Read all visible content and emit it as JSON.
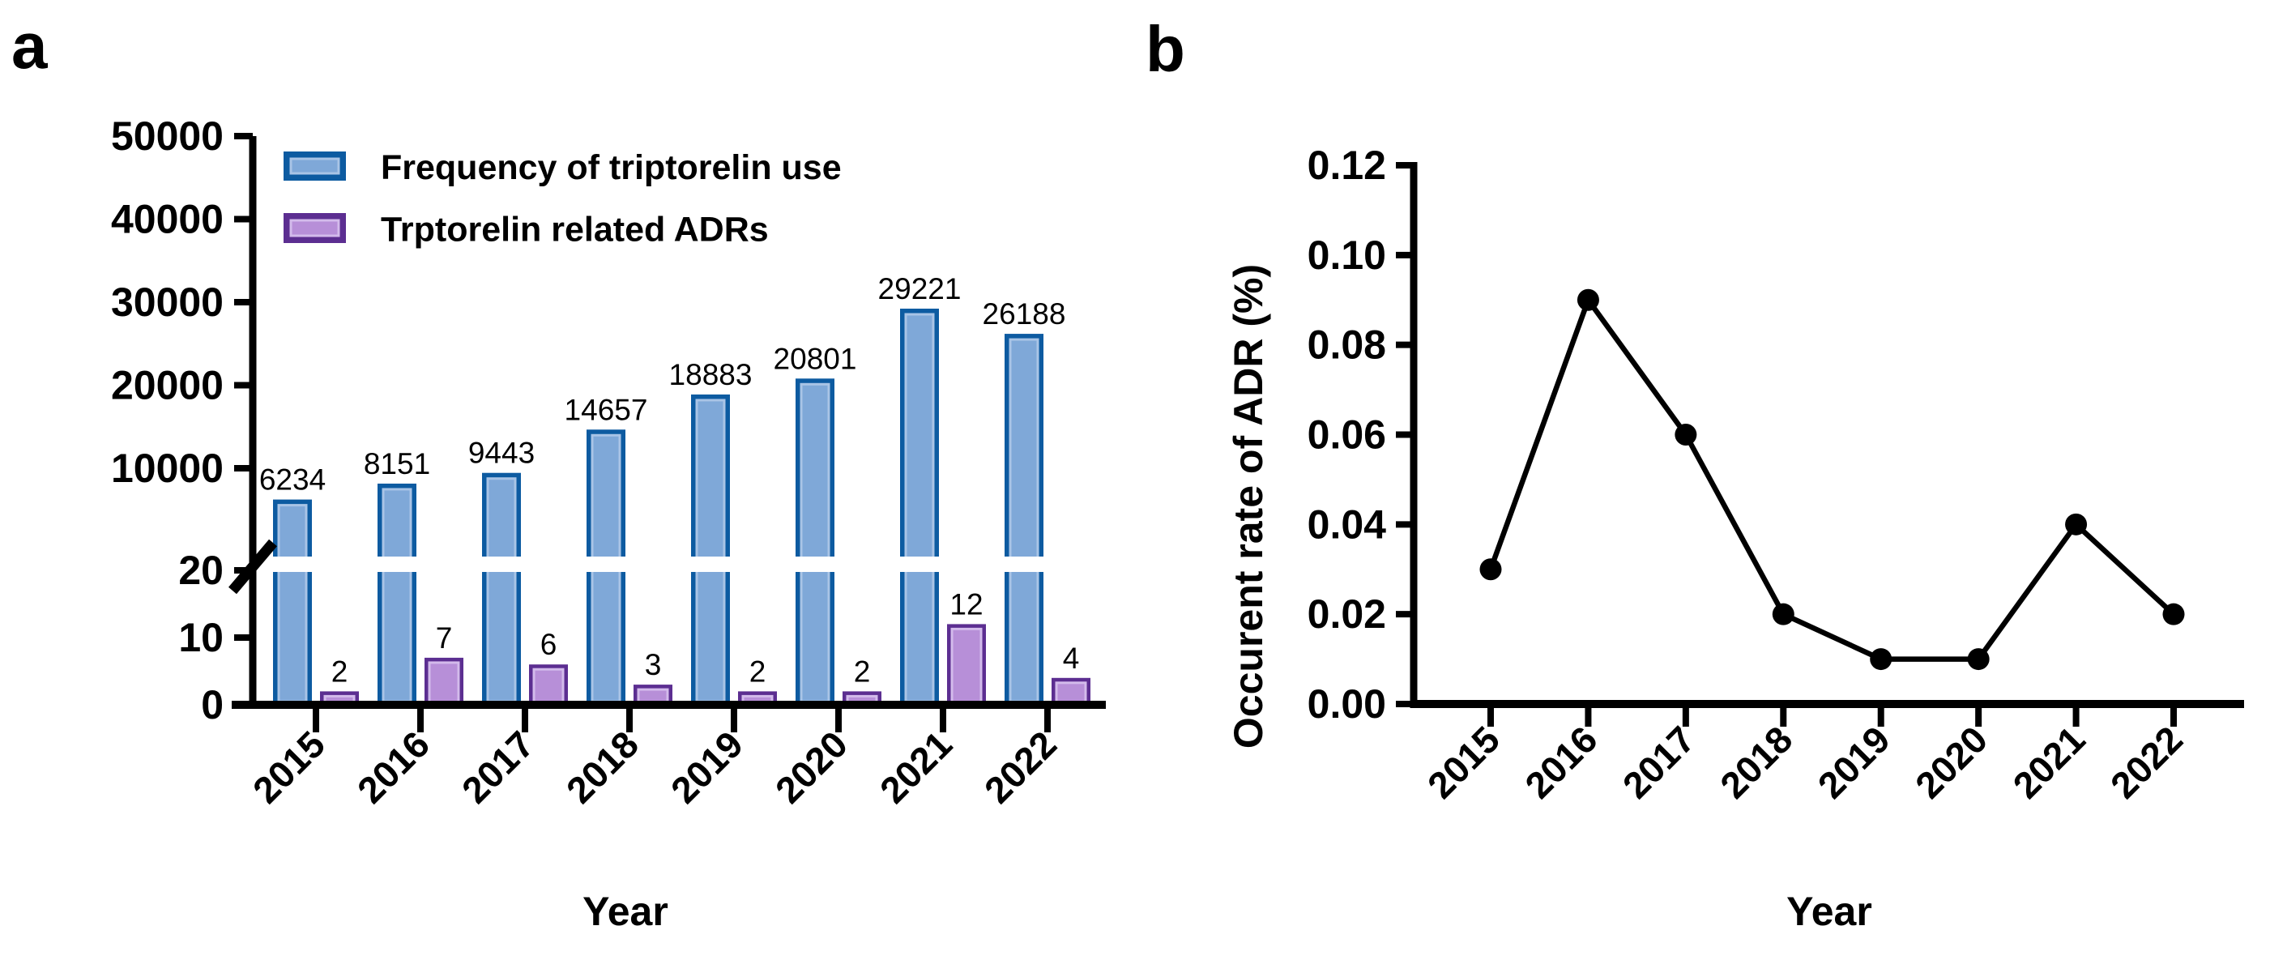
{
  "chart_data": [
    {
      "panel_letter": "a",
      "type": "bar",
      "categories": [
        "2015",
        "2016",
        "2017",
        "2018",
        "2019",
        "2020",
        "2021",
        "2022"
      ],
      "series": [
        {
          "name": "Frequency of triptorelin use",
          "values": [
            6234,
            8151,
            9443,
            14657,
            18883,
            20801,
            29221,
            26188
          ],
          "fill_color": "#7FA8D8",
          "border_color": "#0D5BA1",
          "highlight_color": "#A9C4E6"
        },
        {
          "name": "Trptorelin related ADRs",
          "values": [
            2,
            7,
            6,
            3,
            2,
            2,
            12,
            4
          ],
          "fill_color": "#B78FD8",
          "border_color": "#5C2E91",
          "highlight_color": "#D3BBEB"
        }
      ],
      "xlabel": "Year",
      "ylabel": "",
      "y_axis": {
        "broken": true,
        "lower_tick_labels": [
          "0",
          "10",
          "20"
        ],
        "lower_tick_values": [
          0,
          10,
          20
        ],
        "lower_range": [
          0,
          20
        ],
        "upper_tick_labels": [
          "10000",
          "20000",
          "30000",
          "40000",
          "50000"
        ],
        "upper_tick_values": [
          10000,
          20000,
          30000,
          40000,
          50000
        ],
        "upper_range": [
          0,
          50000
        ]
      },
      "value_labels_shown": true,
      "legend_position": "top-left-inside",
      "grid": false
    },
    {
      "panel_letter": "b",
      "type": "line",
      "x": [
        "2015",
        "2016",
        "2017",
        "2018",
        "2019",
        "2020",
        "2021",
        "2022"
      ],
      "values": [
        0.03,
        0.09,
        0.06,
        0.02,
        0.01,
        0.01,
        0.04,
        0.02
      ],
      "xlabel": "Year",
      "ylabel": "Occurent rate of ADR (%)",
      "y_tick_labels": [
        "0.00",
        "0.02",
        "0.04",
        "0.06",
        "0.08",
        "0.10",
        "0.12"
      ],
      "ylim": [
        0,
        0.12
      ],
      "line_color": "#000000",
      "marker": "filled-circle",
      "marker_color": "#000000",
      "grid": false,
      "legend_position": "none"
    }
  ]
}
